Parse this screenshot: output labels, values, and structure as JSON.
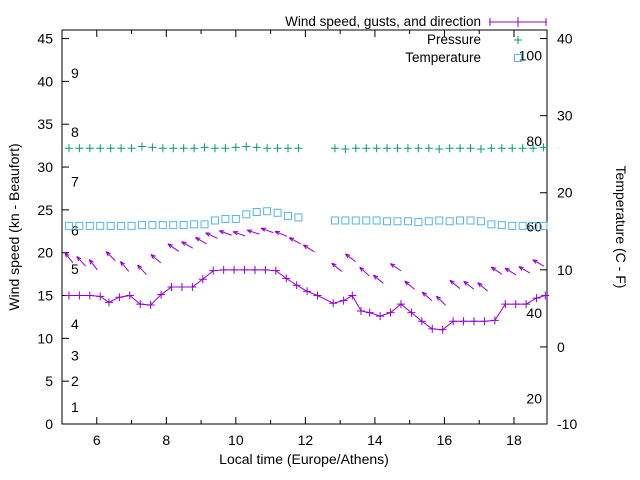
{
  "figure": {
    "xlabel": "Local time (Europe/Athens)",
    "ylabel_left": "Wind speed (kn - Beaufort)",
    "ylabel_right": "Temperature (C - F)",
    "legend": [
      {
        "label": "Wind speed, gusts, and direction",
        "color": "#9400d3",
        "marker": "line-plus"
      },
      {
        "label": "Pressure",
        "color": "#009e73",
        "marker": "plus"
      },
      {
        "label": "Temperature",
        "color": "#56b4e9",
        "marker": "open-square"
      }
    ]
  },
  "chart_data": {
    "type": "line",
    "title": "",
    "x_axis": {
      "label": "Local time (Europe/Athens)",
      "range": [
        5.0,
        18.95
      ],
      "major_ticks": [
        6,
        8,
        10,
        12,
        14,
        16,
        18
      ],
      "minor_ticks": [
        7,
        9,
        11,
        13,
        15,
        17
      ]
    },
    "y_axis_left": {
      "label": "Wind speed (kn - Beaufort)",
      "range": [
        0,
        46
      ],
      "major_ticks": [
        0,
        5,
        10,
        15,
        20,
        25,
        30,
        35,
        40,
        45
      ],
      "beaufort_scale_labels": [
        {
          "label": "1",
          "at": 2.0
        },
        {
          "label": "2",
          "at": 5.0
        },
        {
          "label": "3",
          "at": 8.0
        },
        {
          "label": "4",
          "at": 11.7
        },
        {
          "label": "5",
          "at": 18.1
        },
        {
          "label": "6",
          "at": 22.6
        },
        {
          "label": "7",
          "at": 28.3
        },
        {
          "label": "8",
          "at": 34.1
        },
        {
          "label": "9",
          "at": 41.0
        }
      ]
    },
    "y_axis_right": {
      "label": "Temperature (C - F)",
      "range": [
        -10,
        41.11
      ],
      "major_ticks": [
        -10,
        0,
        10,
        20,
        30,
        40
      ],
      "fahrenheit_scale_labels": [
        {
          "label": "20",
          "at_c": -6.7
        },
        {
          "label": "40",
          "at_c": 4.4
        },
        {
          "label": "60",
          "at_c": 15.6
        },
        {
          "label": "80",
          "at_c": 26.7
        },
        {
          "label": "100",
          "at_c": 37.8
        }
      ]
    },
    "series": {
      "wind_speed": {
        "name": "Wind speed, gusts, and direction",
        "color": "#9400d3",
        "axis": "left",
        "marker": "plus",
        "line": true,
        "points": [
          [
            5.2,
            15
          ],
          [
            5.5,
            15
          ],
          [
            5.8,
            15
          ],
          [
            6.1,
            14.9
          ],
          [
            6.35,
            14.2
          ],
          [
            6.65,
            14.8
          ],
          [
            6.95,
            15.0
          ],
          [
            7.25,
            14.0
          ],
          [
            7.55,
            13.9
          ],
          [
            7.85,
            15.1
          ],
          [
            8.15,
            16.0
          ],
          [
            8.45,
            16.0
          ],
          [
            8.75,
            16.0
          ],
          [
            9.05,
            16.9
          ],
          [
            9.35,
            17.9
          ],
          [
            9.65,
            18.0
          ],
          [
            9.95,
            18.0
          ],
          [
            10.25,
            18.0
          ],
          [
            10.55,
            18.0
          ],
          [
            10.85,
            18.0
          ],
          [
            11.15,
            17.9
          ],
          [
            11.45,
            17.0
          ],
          [
            11.75,
            16.2
          ],
          [
            12.05,
            15.5
          ],
          [
            12.35,
            15.0
          ],
          [
            12.8,
            14.1
          ],
          [
            13.1,
            14.4
          ],
          [
            13.35,
            15.0
          ],
          [
            13.6,
            13.2
          ],
          [
            13.85,
            13.0
          ],
          [
            14.15,
            12.6
          ],
          [
            14.45,
            13.0
          ],
          [
            14.75,
            14.0
          ],
          [
            15.05,
            13.0
          ],
          [
            15.35,
            12.0
          ],
          [
            15.65,
            11.1
          ],
          [
            15.95,
            11.0
          ],
          [
            16.25,
            12.0
          ],
          [
            16.55,
            12.0
          ],
          [
            16.85,
            12.0
          ],
          [
            17.15,
            12.0
          ],
          [
            17.45,
            12.1
          ],
          [
            17.75,
            14.0
          ],
          [
            18.05,
            14.0
          ],
          [
            18.35,
            14.0
          ],
          [
            18.65,
            14.7
          ],
          [
            18.9,
            15.0
          ]
        ]
      },
      "wind_direction_arrows": {
        "color": "#9400d3",
        "axis": "left",
        "arrows": [
          [
            5.2,
            19.4,
            128
          ],
          [
            5.55,
            19.0,
            132
          ],
          [
            5.9,
            18.6,
            128
          ],
          [
            6.4,
            19.6,
            135
          ],
          [
            6.8,
            18.4,
            130
          ],
          [
            7.3,
            18.0,
            133
          ],
          [
            7.7,
            19.3,
            140
          ],
          [
            8.2,
            20.6,
            145
          ],
          [
            8.6,
            20.9,
            150
          ],
          [
            9.0,
            21.4,
            150
          ],
          [
            9.3,
            22.0,
            155
          ],
          [
            9.7,
            22.3,
            160
          ],
          [
            10.1,
            22.2,
            160
          ],
          [
            10.5,
            22.4,
            162
          ],
          [
            10.9,
            22.6,
            160
          ],
          [
            11.3,
            22.2,
            158
          ],
          [
            11.7,
            21.4,
            152
          ],
          [
            12.1,
            20.5,
            148
          ],
          [
            12.9,
            18.3,
            140
          ],
          [
            13.3,
            19.4,
            143
          ],
          [
            13.7,
            17.8,
            138
          ],
          [
            14.1,
            16.9,
            140
          ],
          [
            14.6,
            18.3,
            146
          ],
          [
            15.0,
            16.2,
            140
          ],
          [
            15.5,
            14.9,
            138
          ],
          [
            15.9,
            14.4,
            135
          ],
          [
            16.3,
            16.3,
            140
          ],
          [
            16.7,
            16.2,
            142
          ],
          [
            17.1,
            16.0,
            140
          ],
          [
            17.5,
            17.9,
            146
          ],
          [
            17.9,
            17.8,
            148
          ],
          [
            18.3,
            18.0,
            150
          ],
          [
            18.7,
            18.8,
            150
          ]
        ]
      },
      "pressure": {
        "name": "Pressure",
        "color": "#009e73",
        "axis": "left",
        "marker": "plus",
        "line": false,
        "points": [
          [
            5.2,
            32.2
          ],
          [
            5.5,
            32.2
          ],
          [
            5.8,
            32.2
          ],
          [
            6.1,
            32.2
          ],
          [
            6.4,
            32.2
          ],
          [
            6.7,
            32.2
          ],
          [
            7.0,
            32.2
          ],
          [
            7.3,
            32.4
          ],
          [
            7.6,
            32.3
          ],
          [
            7.9,
            32.2
          ],
          [
            8.2,
            32.2
          ],
          [
            8.5,
            32.2
          ],
          [
            8.8,
            32.2
          ],
          [
            9.1,
            32.3
          ],
          [
            9.4,
            32.2
          ],
          [
            9.7,
            32.2
          ],
          [
            10.0,
            32.3
          ],
          [
            10.3,
            32.4
          ],
          [
            10.6,
            32.3
          ],
          [
            10.9,
            32.2
          ],
          [
            11.2,
            32.2
          ],
          [
            11.5,
            32.2
          ],
          [
            11.8,
            32.2
          ],
          [
            12.85,
            32.2
          ],
          [
            13.15,
            32.1
          ],
          [
            13.45,
            32.2
          ],
          [
            13.75,
            32.2
          ],
          [
            14.05,
            32.2
          ],
          [
            14.35,
            32.2
          ],
          [
            14.65,
            32.2
          ],
          [
            14.95,
            32.2
          ],
          [
            15.25,
            32.2
          ],
          [
            15.55,
            32.2
          ],
          [
            15.85,
            32.1
          ],
          [
            16.15,
            32.2
          ],
          [
            16.45,
            32.2
          ],
          [
            16.75,
            32.2
          ],
          [
            17.05,
            32.1
          ],
          [
            17.35,
            32.2
          ],
          [
            17.65,
            32.2
          ],
          [
            17.95,
            32.2
          ],
          [
            18.25,
            32.2
          ],
          [
            18.55,
            32.2
          ],
          [
            18.85,
            32.3
          ]
        ]
      },
      "temperature": {
        "name": "Temperature",
        "color": "#56b4e9",
        "axis": "right",
        "marker": "open-square",
        "line": false,
        "points": [
          [
            5.2,
            15.7
          ],
          [
            5.5,
            15.7
          ],
          [
            5.8,
            15.7
          ],
          [
            6.1,
            15.7
          ],
          [
            6.4,
            15.7
          ],
          [
            6.7,
            15.7
          ],
          [
            7.0,
            15.7
          ],
          [
            7.3,
            15.8
          ],
          [
            7.6,
            15.8
          ],
          [
            7.9,
            15.8
          ],
          [
            8.2,
            15.8
          ],
          [
            8.5,
            15.8
          ],
          [
            8.8,
            15.9
          ],
          [
            9.1,
            15.9
          ],
          [
            9.4,
            16.4
          ],
          [
            9.7,
            16.6
          ],
          [
            10.0,
            16.6
          ],
          [
            10.3,
            17.2
          ],
          [
            10.6,
            17.5
          ],
          [
            10.9,
            17.6
          ],
          [
            11.2,
            17.4
          ],
          [
            11.5,
            17.0
          ],
          [
            11.8,
            16.8
          ],
          [
            12.85,
            16.4
          ],
          [
            13.15,
            16.4
          ],
          [
            13.45,
            16.4
          ],
          [
            13.75,
            16.4
          ],
          [
            14.05,
            16.4
          ],
          [
            14.35,
            16.3
          ],
          [
            14.65,
            16.3
          ],
          [
            14.95,
            16.3
          ],
          [
            15.25,
            16.2
          ],
          [
            15.55,
            16.3
          ],
          [
            15.85,
            16.4
          ],
          [
            16.15,
            16.3
          ],
          [
            16.45,
            16.4
          ],
          [
            16.75,
            16.4
          ],
          [
            17.05,
            16.3
          ],
          [
            17.35,
            15.9
          ],
          [
            17.65,
            15.8
          ],
          [
            17.95,
            15.7
          ],
          [
            18.25,
            15.7
          ],
          [
            18.55,
            15.7
          ],
          [
            18.85,
            15.7
          ]
        ]
      }
    }
  }
}
